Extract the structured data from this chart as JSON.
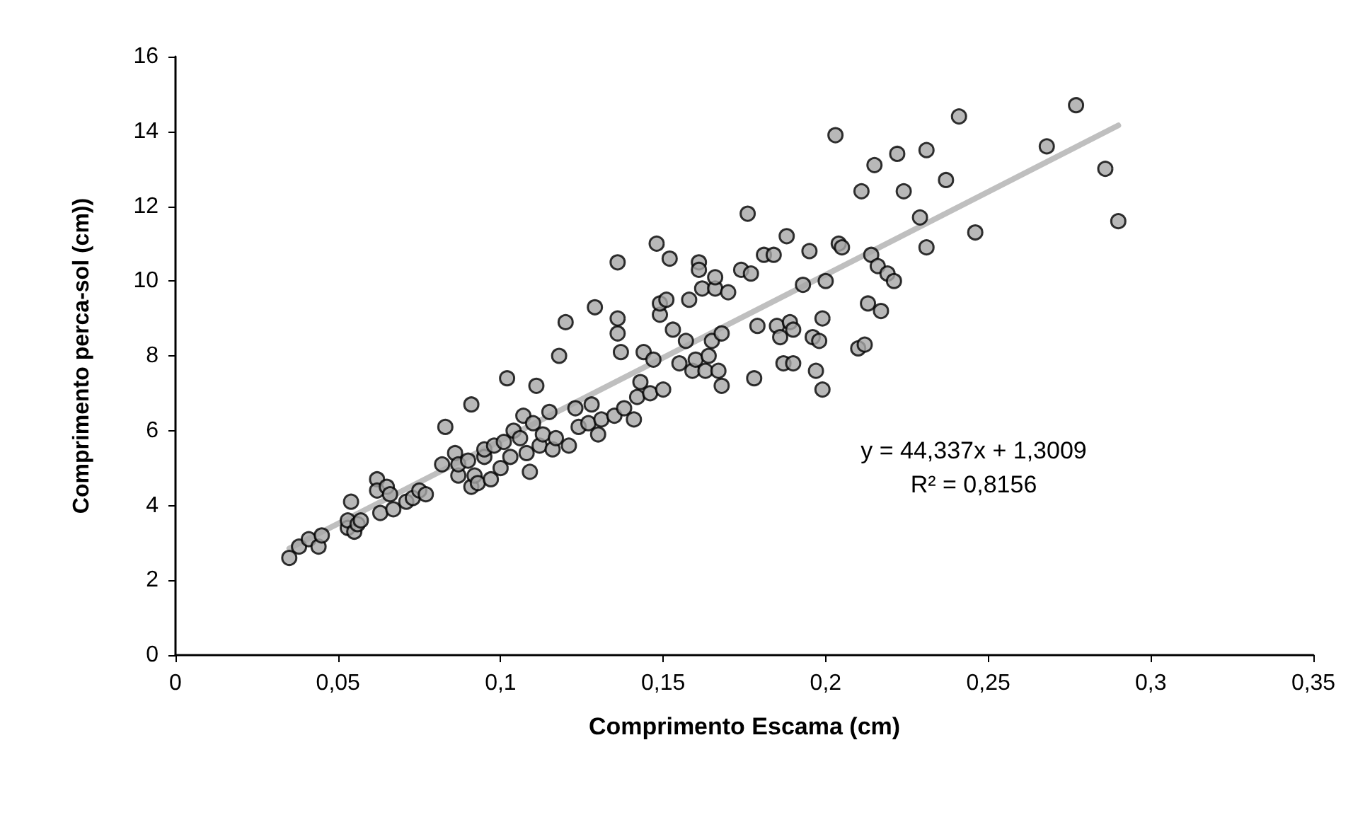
{
  "chart_data": {
    "type": "scatter",
    "xlabel": "Comprimento Escama (cm)",
    "ylabel": "Comprimento perca-sol (cm))",
    "xlim": [
      0,
      0.35
    ],
    "xticks": [
      0,
      {
        "value": 0.05,
        "label": "0,05"
      },
      {
        "value": 0.1,
        "label": "0,1"
      },
      {
        "value": 0.15,
        "label": "0,15"
      },
      {
        "value": 0.2,
        "label": "0,2"
      },
      {
        "value": 0.25,
        "label": "0,25"
      },
      {
        "value": 0.3,
        "label": "0,3"
      },
      {
        "value": 0.35,
        "label": "0,35"
      }
    ],
    "ylim": [
      0,
      16
    ],
    "yticks": [
      0,
      2,
      4,
      6,
      8,
      10,
      12,
      14,
      16
    ],
    "grid": false,
    "marker": "circle",
    "annotations": [
      "y = 44,337x + 1,3009",
      "R² = 0,8156"
    ],
    "series": [
      {
        "color": "#a6a6a6",
        "x": [
          0.035,
          0.038,
          0.041,
          0.044,
          0.045,
          0.053,
          0.053,
          0.054,
          0.055,
          0.056,
          0.057,
          0.062,
          0.062,
          0.063,
          0.065,
          0.066,
          0.067,
          0.071,
          0.073,
          0.075,
          0.077,
          0.082,
          0.083,
          0.086,
          0.087,
          0.087,
          0.09,
          0.091,
          0.091,
          0.092,
          0.093,
          0.095,
          0.095,
          0.097,
          0.098,
          0.1,
          0.101,
          0.102,
          0.103,
          0.104,
          0.106,
          0.107,
          0.108,
          0.109,
          0.11,
          0.111,
          0.112,
          0.113,
          0.115,
          0.116,
          0.117,
          0.118,
          0.12,
          0.121,
          0.123,
          0.124,
          0.127,
          0.128,
          0.129,
          0.13,
          0.131,
          0.135,
          0.136,
          0.136,
          0.136,
          0.137,
          0.138,
          0.141,
          0.142,
          0.143,
          0.144,
          0.146,
          0.147,
          0.148,
          0.149,
          0.149,
          0.15,
          0.151,
          0.152,
          0.153,
          0.155,
          0.157,
          0.158,
          0.159,
          0.16,
          0.161,
          0.161,
          0.162,
          0.163,
          0.164,
          0.165,
          0.166,
          0.166,
          0.167,
          0.168,
          0.168,
          0.17,
          0.174,
          0.176,
          0.177,
          0.178,
          0.179,
          0.181,
          0.184,
          0.185,
          0.186,
          0.187,
          0.188,
          0.189,
          0.19,
          0.19,
          0.193,
          0.195,
          0.196,
          0.197,
          0.198,
          0.199,
          0.199,
          0.2,
          0.203,
          0.204,
          0.205,
          0.21,
          0.211,
          0.212,
          0.213,
          0.214,
          0.215,
          0.216,
          0.217,
          0.219,
          0.221,
          0.222,
          0.224,
          0.229,
          0.231,
          0.231,
          0.237,
          0.241,
          0.246,
          0.268,
          0.277,
          0.286,
          0.29
        ],
        "values": [
          2.6,
          2.9,
          3.1,
          2.9,
          3.2,
          3.4,
          3.6,
          4.1,
          3.3,
          3.5,
          3.6,
          4.7,
          4.4,
          3.8,
          4.5,
          4.3,
          3.9,
          4.1,
          4.2,
          4.4,
          4.3,
          5.1,
          6.1,
          5.4,
          4.8,
          5.1,
          5.2,
          6.7,
          4.5,
          4.8,
          4.6,
          5.3,
          5.5,
          4.7,
          5.6,
          5.0,
          5.7,
          7.4,
          5.3,
          6.0,
          5.8,
          6.4,
          5.4,
          4.9,
          6.2,
          7.2,
          5.6,
          5.9,
          6.5,
          5.5,
          5.8,
          8.0,
          8.9,
          5.6,
          6.6,
          6.1,
          6.2,
          6.7,
          9.3,
          5.9,
          6.3,
          6.4,
          8.6,
          9.0,
          10.5,
          8.1,
          6.6,
          6.3,
          6.9,
          7.3,
          8.1,
          7.0,
          7.9,
          11.0,
          9.1,
          9.4,
          7.1,
          9.5,
          10.6,
          8.7,
          7.8,
          8.4,
          9.5,
          7.6,
          7.9,
          10.5,
          10.3,
          9.8,
          7.6,
          8.0,
          8.4,
          9.8,
          10.1,
          7.6,
          8.6,
          7.2,
          9.7,
          10.3,
          11.8,
          10.2,
          7.4,
          8.8,
          10.7,
          10.7,
          8.8,
          8.5,
          7.8,
          11.2,
          8.9,
          7.8,
          8.7,
          9.9,
          10.8,
          8.5,
          7.6,
          8.4,
          7.1,
          9.0,
          10.0,
          13.9,
          11.0,
          10.9,
          8.2,
          12.4,
          8.3,
          9.4,
          10.7,
          13.1,
          10.4,
          9.2,
          10.2,
          10.0,
          13.4,
          12.4,
          11.7,
          13.5,
          10.9,
          12.7,
          14.4,
          11.3,
          13.6,
          14.7,
          13.0,
          11.6
        ]
      },
      {
        "type": "line",
        "marker": "none",
        "color": "#bfbfbf",
        "x": [
          0.035,
          0.29
        ],
        "values": [
          2.85,
          14.16
        ]
      }
    ]
  }
}
